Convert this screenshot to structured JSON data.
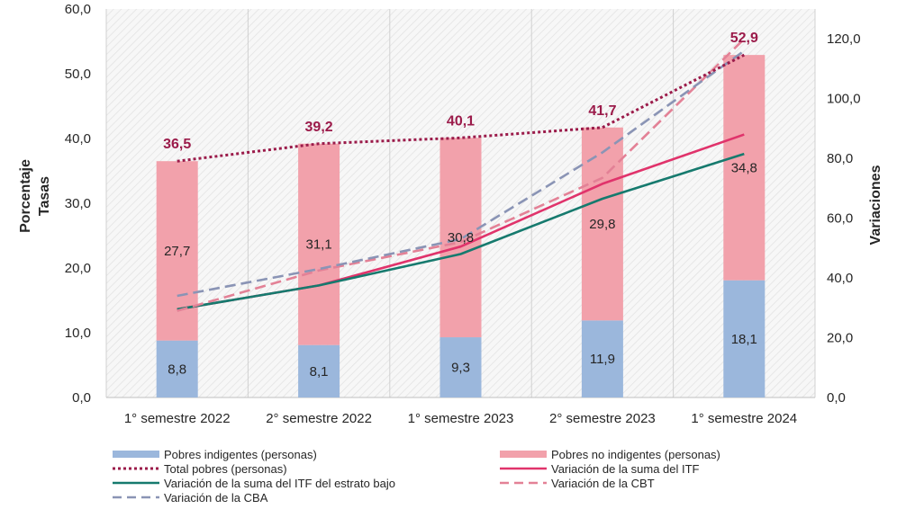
{
  "colors": {
    "indigentes": "#9bb7dc",
    "no_indigentes": "#f2a1ab",
    "total": "#9b1b4a",
    "itf": "#e0336b",
    "itf_bajo": "#167a6e",
    "cbt": "#e38196",
    "cba": "#8a94b5"
  },
  "chart_data": {
    "type": "bar",
    "stacked": true,
    "categories": [
      "1° semestre 2022",
      "2° semestre 2022",
      "1° semestre 2023",
      "2° semestre 2023",
      "1° semestre 2024"
    ],
    "y_left": {
      "label_line1": "Porcentaje",
      "label_line2": "Tasas",
      "ylim": [
        0,
        60
      ],
      "ticks": [
        "0,0",
        "10,0",
        "20,0",
        "30,0",
        "40,0",
        "50,0",
        "60,0"
      ]
    },
    "y_right": {
      "label": "Variaciones",
      "ylim": [
        0,
        130
      ],
      "ticks": [
        "0,0",
        "20,0",
        "40,0",
        "60,0",
        "80,0",
        "100,0",
        "120,0"
      ]
    },
    "grid": "hatched background, vertical category gridlines",
    "bars": [
      {
        "name": "Pobres indigentes (personas)",
        "color_key": "indigentes",
        "values": [
          8.8,
          8.1,
          9.3,
          11.9,
          18.1
        ],
        "labels": [
          "8,8",
          "8,1",
          "9,3",
          "11,9",
          "18,1"
        ]
      },
      {
        "name": "Pobres no indigentes (personas)",
        "color_key": "no_indigentes",
        "values": [
          27.7,
          31.1,
          30.8,
          29.8,
          34.8
        ],
        "labels": [
          "27,7",
          "31,1",
          "30,8",
          "29,8",
          "34,8"
        ]
      }
    ],
    "total_line": {
      "name": "Total pobres (personas)",
      "color_key": "total",
      "axis": "left",
      "values": [
        36.5,
        39.2,
        40.1,
        41.7,
        52.9
      ],
      "labels": [
        "36,5",
        "39,2",
        "40,1",
        "41,7",
        "52,9"
      ]
    },
    "lines": [
      {
        "name": "Variación de la suma del ITF",
        "color_key": "itf",
        "axis": "right",
        "dash": "solid",
        "values": [
          29.5,
          37.5,
          50.5,
          71.5,
          88.0
        ]
      },
      {
        "name": "Variación de la suma del ITF del estrato bajo",
        "color_key": "itf_bajo",
        "axis": "right",
        "dash": "solid",
        "values": [
          29.5,
          37.5,
          48.0,
          66.5,
          81.5
        ]
      },
      {
        "name": "Variación de la CBT",
        "color_key": "cbt",
        "axis": "right",
        "dash": "dashed",
        "values": [
          29.0,
          42.5,
          52.0,
          73.5,
          120.0
        ]
      },
      {
        "name": "Variación de la CBA",
        "color_key": "cba",
        "axis": "right",
        "dash": "dashed",
        "values": [
          34.0,
          43.0,
          53.0,
          82.0,
          116.0
        ]
      }
    ],
    "legend": {
      "placement": "bottom",
      "items": [
        {
          "label": "Pobres indigentes (personas)",
          "kind": "box",
          "color_key": "indigentes"
        },
        {
          "label": "Pobres no indigentes (personas)",
          "kind": "box",
          "color_key": "no_indigentes"
        },
        {
          "label": "Total pobres (personas)",
          "kind": "dotted",
          "color_key": "total"
        },
        {
          "label": "Variación de la suma del ITF",
          "kind": "solid",
          "color_key": "itf"
        },
        {
          "label": "Variación de la suma del ITF del estrato bajo",
          "kind": "solid",
          "color_key": "itf_bajo"
        },
        {
          "label": "Variación de la CBT",
          "kind": "dashed",
          "color_key": "cbt"
        },
        {
          "label": "Variación de la CBA",
          "kind": "dashed",
          "color_key": "cba"
        }
      ]
    }
  }
}
